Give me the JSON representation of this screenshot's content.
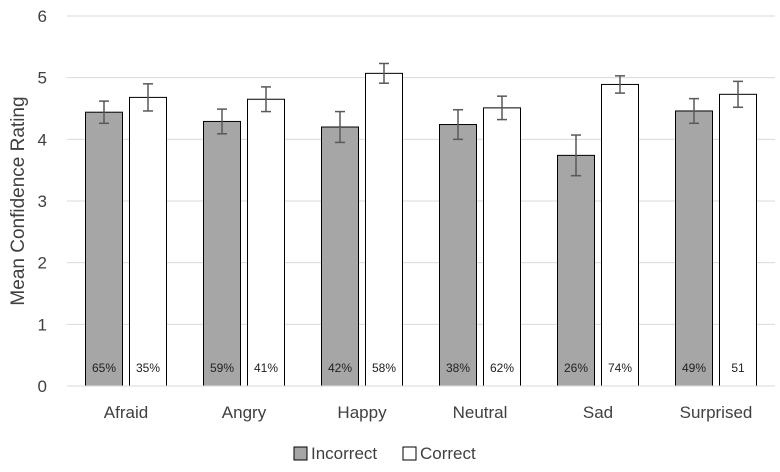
{
  "chart_data": {
    "type": "bar",
    "title": "",
    "xlabel": "",
    "ylabel": "Mean Confidence Rating",
    "ylim": [
      0,
      6
    ],
    "yticks": [
      0,
      1,
      2,
      3,
      4,
      5,
      6
    ],
    "grid": true,
    "legend_position": "bottom",
    "categories": [
      "Afraid",
      "Angry",
      "Happy",
      "Neutral",
      "Sad",
      "Surprised"
    ],
    "series": [
      {
        "name": "Incorrect",
        "color": "#a6a6a6",
        "values": [
          4.44,
          4.29,
          4.2,
          4.24,
          3.74,
          4.46
        ],
        "error": [
          0.18,
          0.2,
          0.25,
          0.24,
          0.33,
          0.2
        ],
        "labels": [
          "65%",
          "59%",
          "42%",
          "38%",
          "26%",
          "49%"
        ]
      },
      {
        "name": "Correct",
        "color": "#ffffff",
        "values": [
          4.68,
          4.65,
          5.07,
          4.51,
          4.89,
          4.73
        ],
        "error": [
          0.22,
          0.2,
          0.16,
          0.19,
          0.14,
          0.21
        ],
        "labels": [
          "35%",
          "41%",
          "58%",
          "62%",
          "74%",
          "51"
        ]
      }
    ]
  }
}
